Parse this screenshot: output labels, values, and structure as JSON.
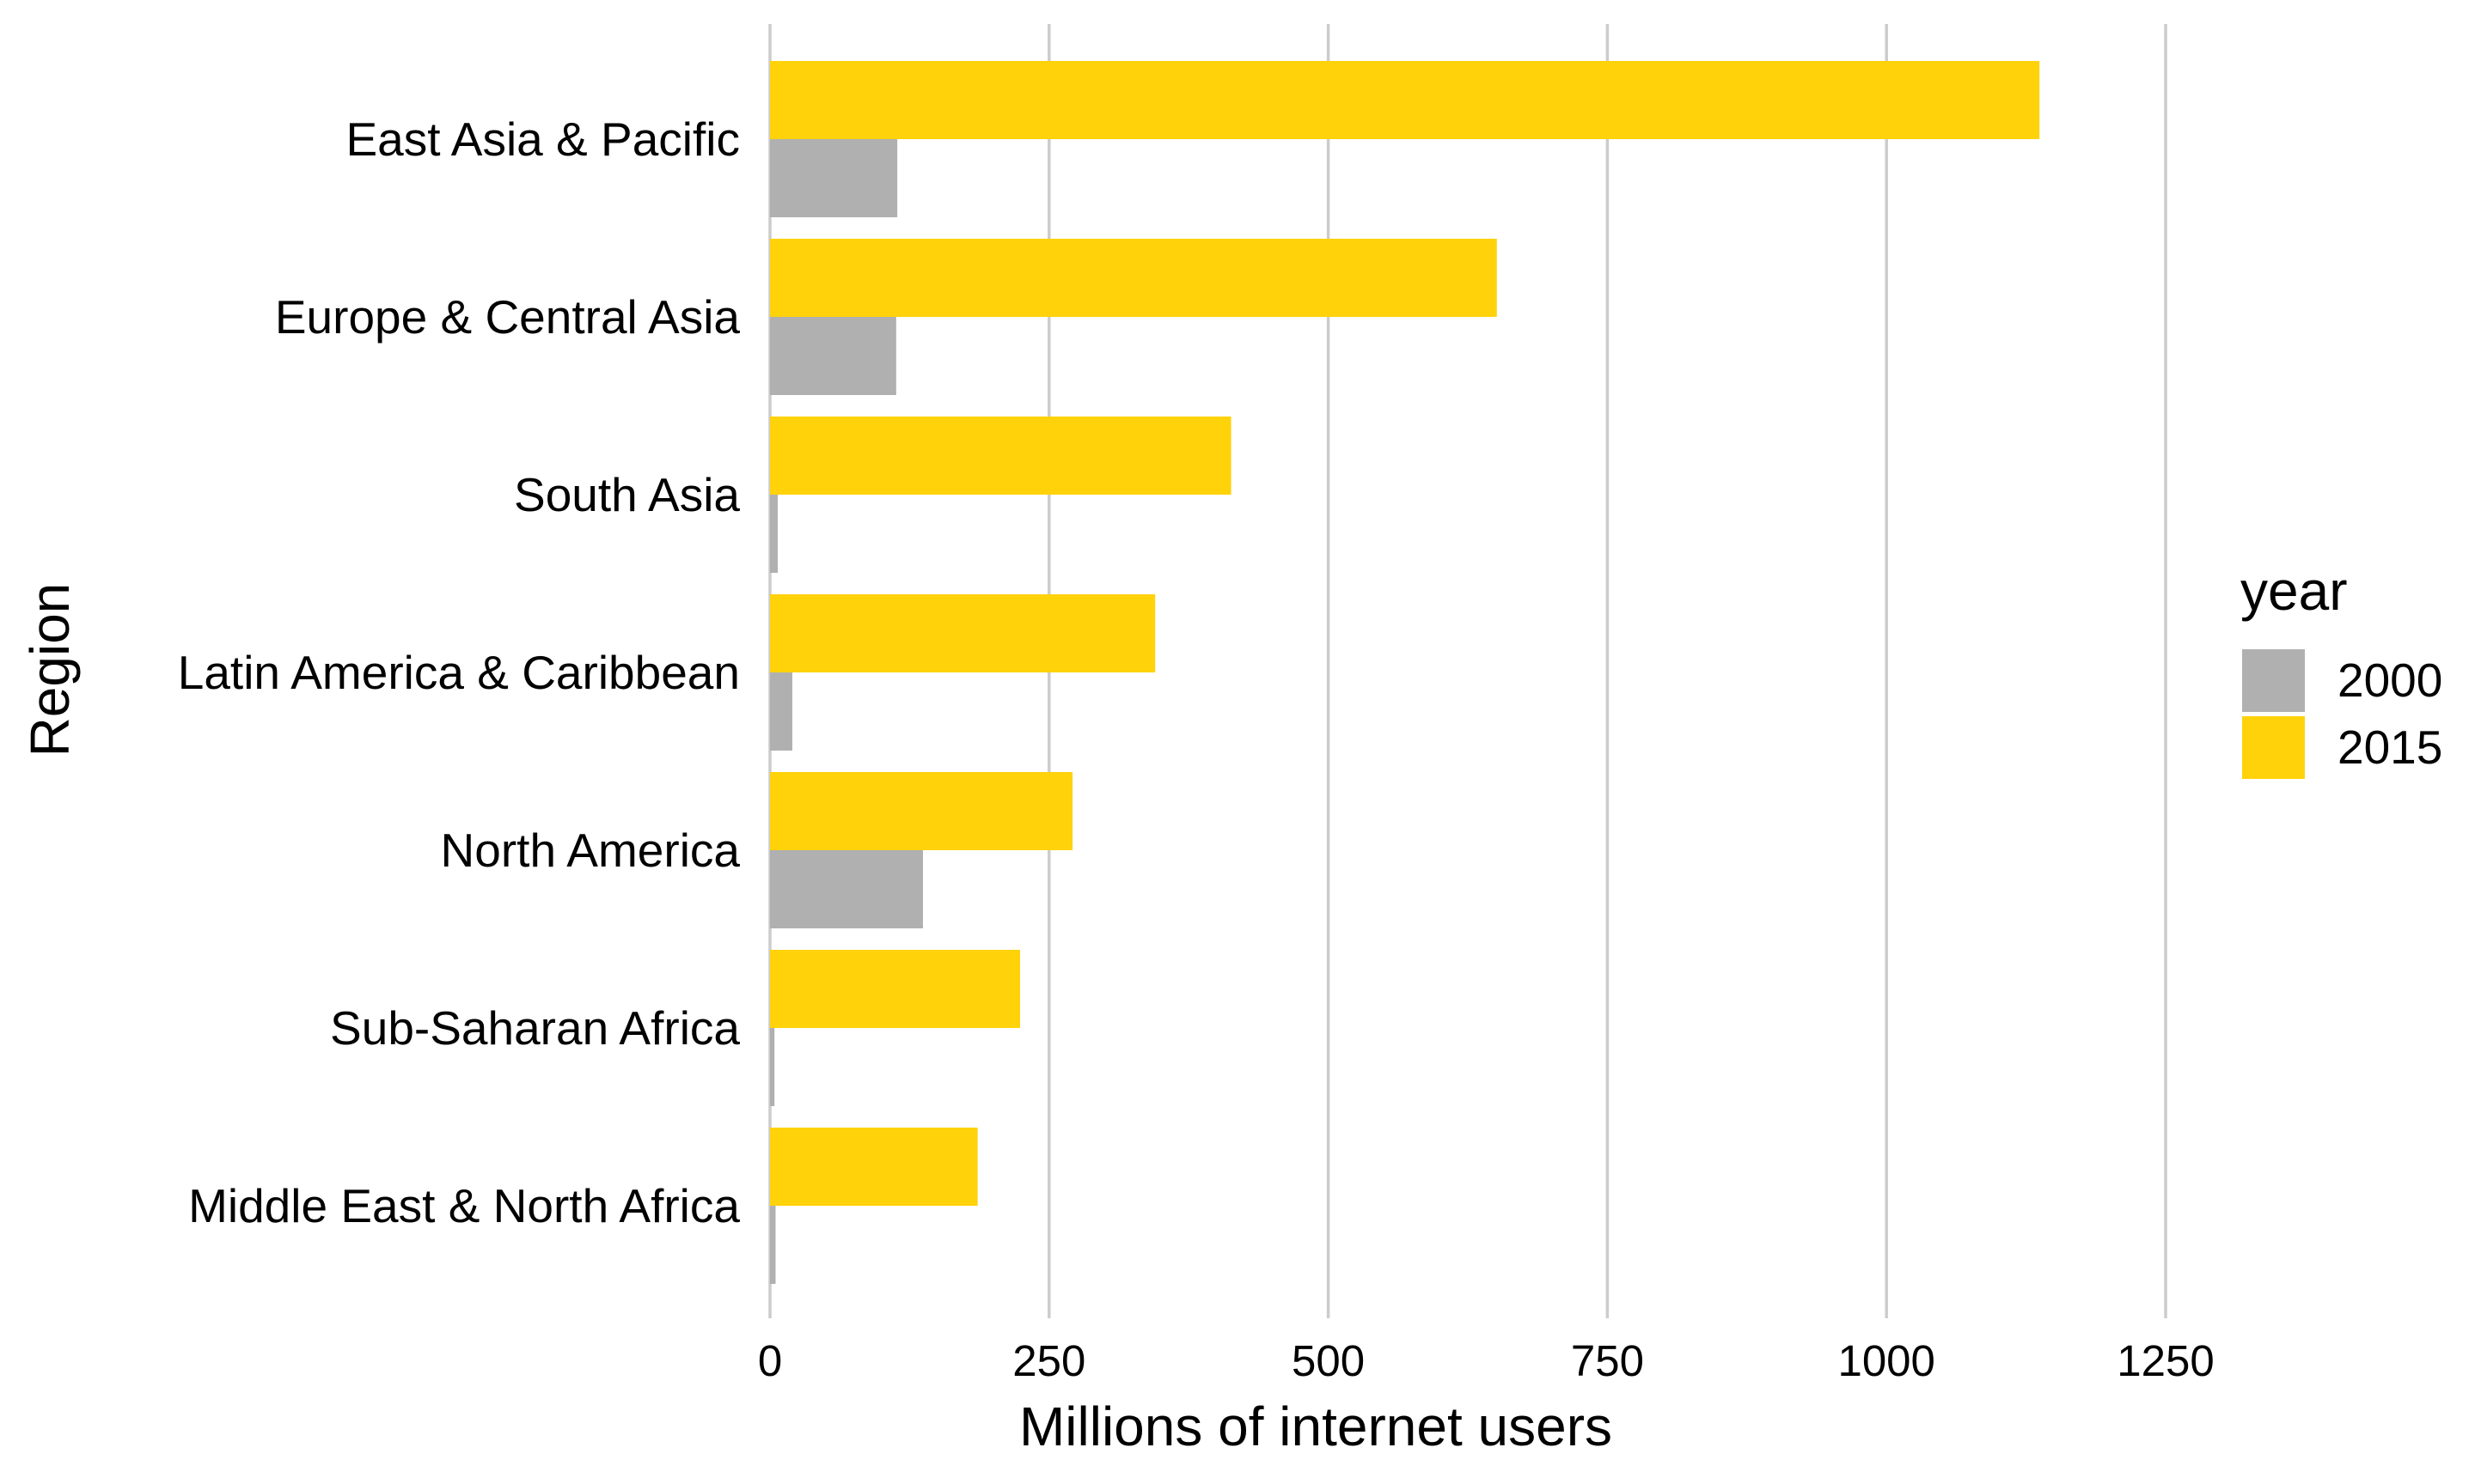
{
  "chart_data": {
    "type": "bar",
    "orientation": "horizontal",
    "categories": [
      "East Asia & Pacific",
      "Europe & Central Asia",
      "South Asia",
      "Latin America & Caribbean",
      "North America",
      "Sub-Saharan Africa",
      "Middle East & North Africa"
    ],
    "series": [
      {
        "name": "2000",
        "color": "#b0b0b0",
        "values": [
          114,
          113,
          7,
          20,
          137,
          4,
          5
        ]
      },
      {
        "name": "2015",
        "color": "#ffd20a",
        "values": [
          1137,
          651,
          413,
          345,
          271,
          224,
          186
        ]
      }
    ],
    "xlabel": "Millions of internet users",
    "ylabel": "Region",
    "xlim": [
      0,
      1400
    ],
    "xticks": [
      0,
      250,
      500,
      750,
      1000,
      1250
    ],
    "xtick_labels": [
      "0",
      "250",
      "500",
      "750",
      "1000",
      "1250"
    ],
    "legend": {
      "title": "year",
      "position": "right"
    },
    "grid": {
      "vertical": true,
      "horizontal": false
    }
  }
}
